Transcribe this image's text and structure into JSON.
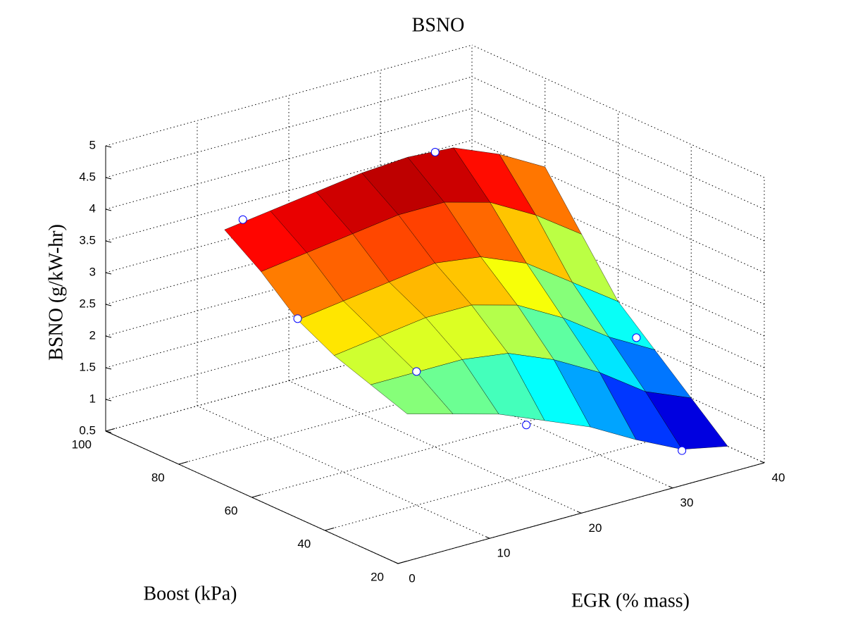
{
  "chart_data": {
    "type": "surface",
    "title": "BSNO",
    "xlabel": "EGR (% mass)",
    "ylabel": "Boost (kPa)",
    "zlabel": "BSNO (g/kW-hr)",
    "xlim": [
      0,
      40
    ],
    "ylim": [
      20,
      100
    ],
    "zlim": [
      0.5,
      5
    ],
    "xticks": [
      0,
      10,
      20,
      30,
      40
    ],
    "yticks": [
      20,
      40,
      60,
      80,
      100
    ],
    "zticks": [
      0.5,
      1,
      1.5,
      2,
      2.5,
      3,
      3.5,
      4,
      4.5,
      5
    ],
    "grid": true,
    "colormap": "jet",
    "surface": {
      "egr": [
        5,
        10,
        15,
        20,
        25,
        30,
        35,
        40
      ],
      "boost": [
        30,
        40,
        50,
        60,
        70,
        80
      ],
      "z": [
        [
          2.4,
          2.2,
          2.0,
          1.7,
          1.4,
          1.0,
          0.65,
          0.5
        ],
        [
          2.6,
          2.6,
          2.6,
          2.5,
          2.2,
          1.8,
          1.3,
          1.0
        ],
        [
          2.8,
          2.9,
          3.0,
          3.0,
          2.8,
          2.4,
          1.9,
          1.5
        ],
        [
          3.1,
          3.2,
          3.3,
          3.4,
          3.3,
          3.0,
          2.5,
          2.0
        ],
        [
          3.6,
          3.7,
          3.8,
          3.9,
          3.9,
          3.7,
          3.3,
          2.8
        ],
        [
          4.0,
          4.1,
          4.2,
          4.3,
          4.35,
          4.3,
          4.0,
          3.6
        ]
      ]
    },
    "points": {
      "color": "#0000ff",
      "egr": [
        7,
        28,
        5,
        10,
        18,
        35,
        40
      ],
      "boost": [
        80,
        80,
        60,
        40,
        30,
        30,
        55
      ],
      "bsno": [
        4.08,
        4.31,
        3.12,
        2.61,
        1.71,
        0.63,
        1.56
      ]
    }
  }
}
